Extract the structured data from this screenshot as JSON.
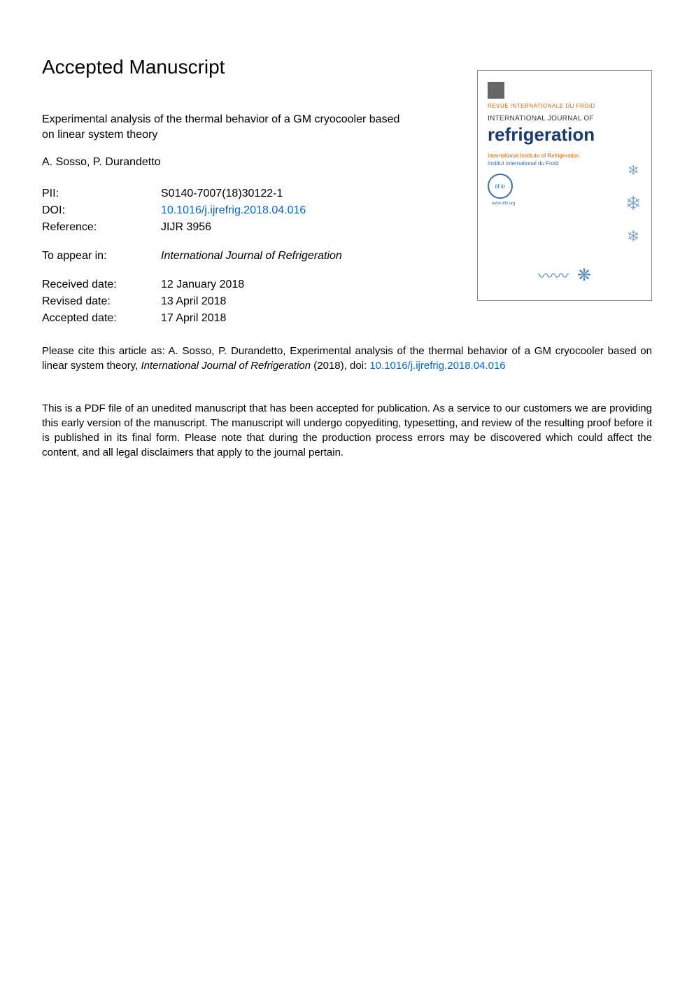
{
  "heading": "Accepted Manuscript",
  "title": "Experimental analysis of the thermal behavior of a GM cryocooler based on linear system theory",
  "authors": "A. Sosso, P. Durandetto",
  "identifiers": {
    "pii_label": "PII:",
    "pii_value": "S0140-7007(18)30122-1",
    "doi_label": "DOI:",
    "doi_value": "10.1016/j.ijrefrig.2018.04.016",
    "reference_label": "Reference:",
    "reference_value": "JIJR 3956"
  },
  "appear": {
    "label": "To appear in:",
    "value": "International Journal of Refrigeration"
  },
  "dates": {
    "received_label": "Received date:",
    "received_value": "12 January 2018",
    "revised_label": "Revised date:",
    "revised_value": "13 April 2018",
    "accepted_label": "Accepted date:",
    "accepted_value": "17 April 2018"
  },
  "citation": {
    "prefix": "Please cite this article as: A. Sosso, P. Durandetto, Experimental analysis of the thermal behavior of a GM cryocooler based on linear system theory, ",
    "journal": "International Journal of Refrigeration",
    "suffix": " (2018), doi: ",
    "doi": "10.1016/j.ijrefrig.2018.04.016"
  },
  "disclaimer": "This is a PDF file of an unedited manuscript that has been accepted for publication. As a service to our customers we are providing this early version of the manuscript. The manuscript will undergo copyediting, typesetting, and review of the resulting proof before it is published in its final form. Please note that during the production process errors may be discovered which could affect the content, and all legal disclaimers that apply to the journal pertain.",
  "cover": {
    "revue": "REVUE INTERNATIONALE DU FROID",
    "intl": "INTERNATIONAL JOURNAL OF",
    "title": "refrigeration",
    "subtitle1": "International Institute of Refrigeration",
    "subtitle2": "Institut International du Froid",
    "iir_text": "iif iir",
    "url": "www.iifiir.org",
    "colors": {
      "title_color": "#1a3a6e",
      "accent_orange": "#cc6600",
      "accent_blue": "#3a6ea8",
      "snowflake_color": "#8aa8c8",
      "border_color": "#888888"
    }
  }
}
